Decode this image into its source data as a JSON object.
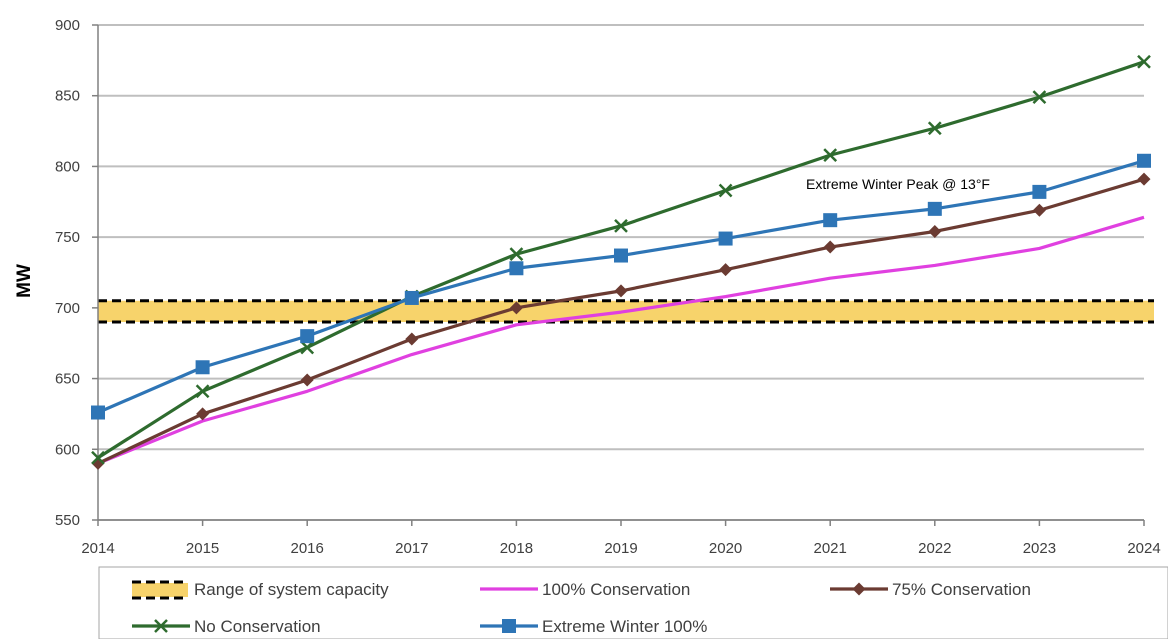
{
  "chart_data": {
    "type": "line",
    "ylabel": "MW",
    "xlabel": "",
    "ylim": [
      550,
      900
    ],
    "yticks": [
      550,
      600,
      650,
      700,
      750,
      800,
      850,
      900
    ],
    "x": [
      2014,
      2015,
      2016,
      2017,
      2018,
      2019,
      2020,
      2021,
      2022,
      2023,
      2024
    ],
    "grid": "horizontal",
    "legend_position": "bottom",
    "capacity_range": {
      "low": 690,
      "high": 705
    },
    "annotation": "Extreme Winter Peak @ 13°F",
    "series": [
      {
        "name": "100% Conservation",
        "color": "#e040e0",
        "marker": "none",
        "values": [
          590,
          620,
          641,
          667,
          688,
          697,
          708,
          721,
          730,
          742,
          764
        ]
      },
      {
        "name": "75% Conservation",
        "color": "#6b3b32",
        "marker": "diamond",
        "values": [
          590,
          625,
          649,
          678,
          700,
          712,
          727,
          743,
          754,
          769,
          791
        ]
      },
      {
        "name": "No Conservation",
        "color": "#2e6b2e",
        "marker": "x",
        "values": [
          594,
          641,
          672,
          708,
          738,
          758,
          783,
          808,
          827,
          849,
          874
        ]
      },
      {
        "name": "Extreme Winter 100%",
        "color": "#2e75b6",
        "marker": "square",
        "values": [
          626,
          658,
          680,
          707,
          728,
          737,
          749,
          762,
          770,
          782,
          804
        ]
      }
    ],
    "legend": [
      {
        "label": "Range of system capacity",
        "kind": "range"
      },
      {
        "label": "100% Conservation",
        "kind": "series",
        "series": 0
      },
      {
        "label": "75% Conservation",
        "kind": "series",
        "series": 1
      },
      {
        "label": "No Conservation",
        "kind": "series",
        "series": 2
      },
      {
        "label": "Extreme Winter 100%",
        "kind": "series",
        "series": 3
      }
    ],
    "colors": {
      "grid": "#bfbfbf",
      "range_fill": "#f7d36b",
      "range_border": "#000000",
      "axis": "#808080"
    }
  }
}
